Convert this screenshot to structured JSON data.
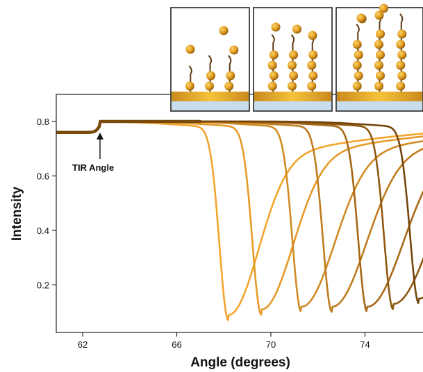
{
  "chart_data": {
    "type": "line",
    "title": "",
    "xlabel": "Angle (degrees)",
    "ylabel": "Intensity",
    "xlim": [
      60.9,
      77.8
    ],
    "ylim": [
      0.0,
      0.86
    ],
    "x_ticks": [
      62,
      66,
      70,
      74
    ],
    "y_ticks": [
      0.2,
      0.4,
      0.6,
      0.8
    ],
    "grid": false,
    "legend": "none",
    "tir_angle": 62.7,
    "annotations": [
      {
        "text": "TIR Angle",
        "x": 62.7,
        "y": 0.78
      }
    ],
    "series": [
      {
        "color": "#F2A52C",
        "dip_angle": 68.2,
        "min_intensity": 0.09,
        "end_value": 0.72
      },
      {
        "color": "#E59A28",
        "dip_angle": 69.6,
        "min_intensity": 0.11,
        "end_value": 0.68
      },
      {
        "color": "#D08A22",
        "dip_angle": 71.3,
        "min_intensity": 0.12,
        "end_value": 0.63
      },
      {
        "color": "#BF7C1E",
        "dip_angle": 72.6,
        "min_intensity": 0.12,
        "end_value": 0.55
      },
      {
        "color": "#A66815",
        "dip_angle": 74.1,
        "min_intensity": 0.12,
        "end_value": 0.45
      },
      {
        "color": "#8F5810",
        "dip_angle": 75.2,
        "min_intensity": 0.13,
        "end_value": 0.33
      },
      {
        "color": "#74460C",
        "dip_angle": 76.3,
        "min_intensity": 0.15,
        "end_value": 0.2
      }
    ],
    "insets": [
      {
        "columns": [
          [
            1,
            0
          ],
          [
            2,
            0
          ],
          [
            2,
            1
          ]
        ]
      },
      {
        "columns": [
          [
            4,
            0
          ],
          [
            4,
            1
          ],
          [
            4,
            0
          ]
        ]
      },
      {
        "columns": [
          [
            5,
            1
          ],
          [
            6,
            1
          ],
          [
            6,
            0
          ]
        ]
      }
    ]
  }
}
